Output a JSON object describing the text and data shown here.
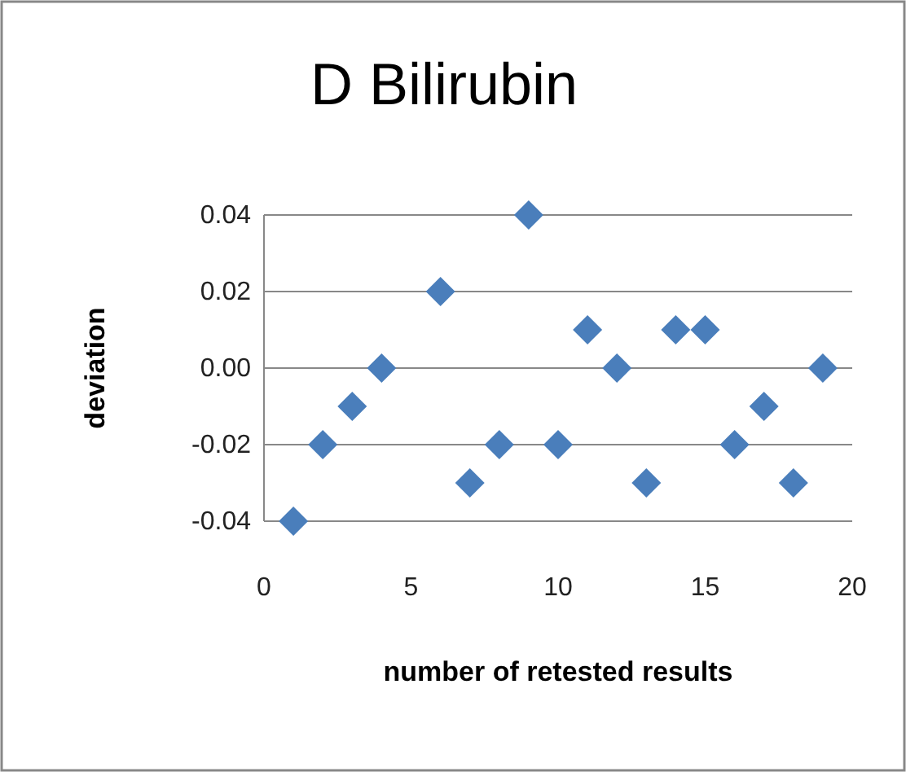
{
  "chart_data": {
    "type": "scatter",
    "title": "D Bilirubin",
    "xlabel": "number of retested results",
    "ylabel": "deviation",
    "x": [
      1,
      2,
      3,
      4,
      6,
      7,
      8,
      9,
      10,
      11,
      12,
      13,
      14,
      15,
      16,
      17,
      18,
      19
    ],
    "values": [
      -0.04,
      -0.02,
      -0.01,
      0,
      0.02,
      -0.03,
      -0.02,
      0.04,
      -0.02,
      0.01,
      0,
      -0.03,
      0.01,
      0.01,
      -0.02,
      -0.01,
      -0.03,
      0
    ],
    "color": "#4a7ebb",
    "marker": "diamond",
    "xlim": [
      0,
      20
    ],
    "xticks": [
      0,
      5,
      10,
      15,
      20
    ],
    "ylim": [
      -0.04,
      0.04
    ],
    "yticks": [
      {
        "value": -0.04,
        "label": "-0.04"
      },
      {
        "value": -0.02,
        "label": "-0.02"
      },
      {
        "value": 0,
        "label": "0.00"
      },
      {
        "value": 0.02,
        "label": "0.02"
      },
      {
        "value": 0.04,
        "label": "0.04"
      }
    ],
    "grid": "y",
    "legend": false
  }
}
